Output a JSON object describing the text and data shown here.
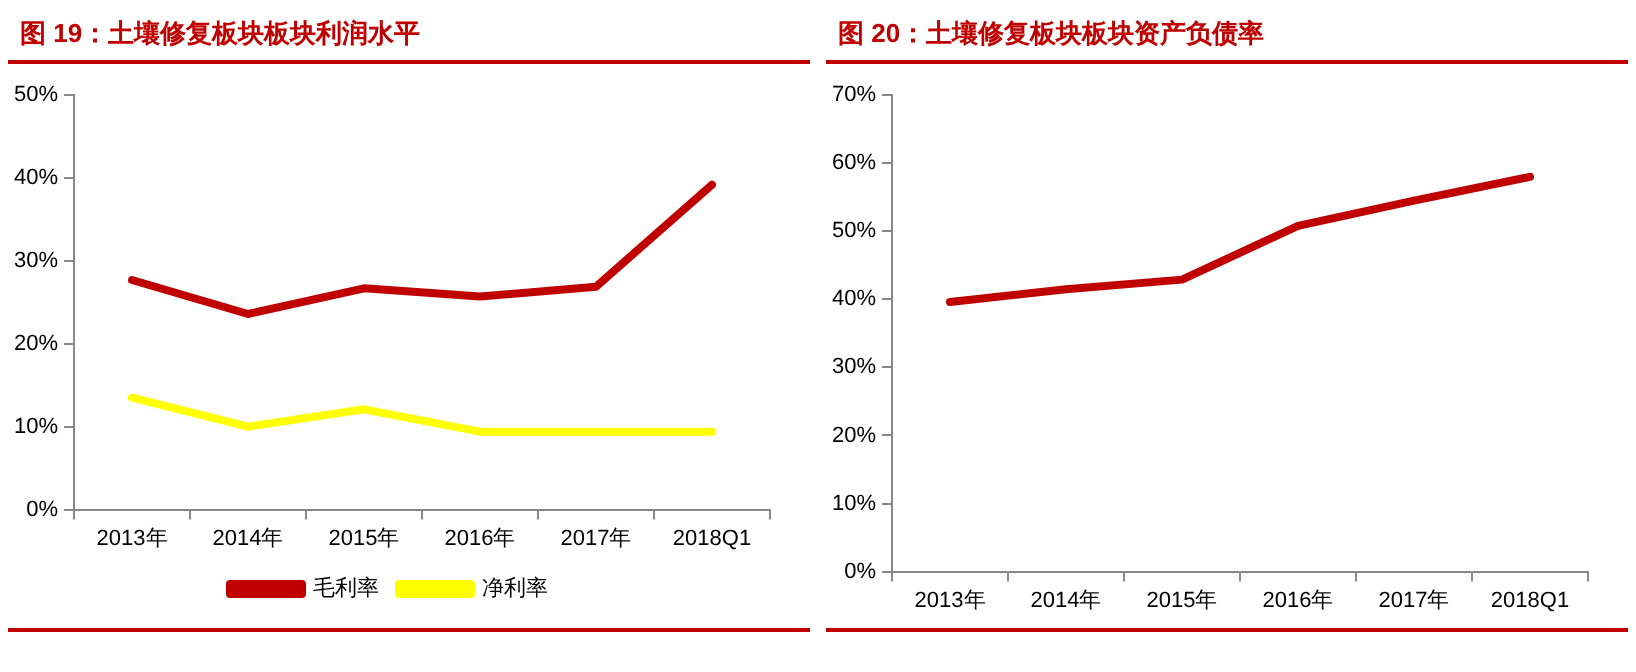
{
  "chart_data": [
    {
      "type": "line",
      "title": "图 19：土壤修复板块板块利润水平",
      "categories": [
        "2013年",
        "2014年",
        "2015年",
        "2016年",
        "2017年",
        "2018Q1"
      ],
      "series": [
        {
          "name": "毛利率",
          "color": "#c00000",
          "values": [
            27.7,
            23.6,
            26.7,
            25.7,
            26.9,
            39.2
          ]
        },
        {
          "name": "净利率",
          "color": "#ffff00",
          "values": [
            13.5,
            10.0,
            12.1,
            9.4,
            9.4,
            9.4
          ]
        }
      ],
      "ylim": [
        0,
        50
      ],
      "yticks": [
        {
          "value": 0,
          "label": "0%"
        },
        {
          "value": 10,
          "label": "10%"
        },
        {
          "value": 20,
          "label": "20%"
        },
        {
          "value": 30,
          "label": "30%"
        },
        {
          "value": 40,
          "label": "40%"
        },
        {
          "value": 50,
          "label": "50%"
        }
      ],
      "grid": false,
      "legend": "bottom",
      "marker": "none"
    },
    {
      "type": "line",
      "title": "图 20：土壤修复板块板块资产负债率",
      "categories": [
        "2013年",
        "2014年",
        "2015年",
        "2016年",
        "2017年",
        "2018Q1"
      ],
      "series": [
        {
          "color": "#c00000",
          "values": [
            39.6,
            41.5,
            42.9,
            50.8,
            54.5,
            58.0
          ]
        }
      ],
      "ylim": [
        0,
        70
      ],
      "yticks": [
        {
          "value": 0,
          "label": "0%"
        },
        {
          "value": 10,
          "label": "10%"
        },
        {
          "value": 20,
          "label": "20%"
        },
        {
          "value": 30,
          "label": "30%"
        },
        {
          "value": 40,
          "label": "40%"
        },
        {
          "value": 50,
          "label": "50%"
        },
        {
          "value": 60,
          "label": "60%"
        },
        {
          "value": 70,
          "label": "70%"
        }
      ],
      "grid": false,
      "marker": "none"
    }
  ]
}
